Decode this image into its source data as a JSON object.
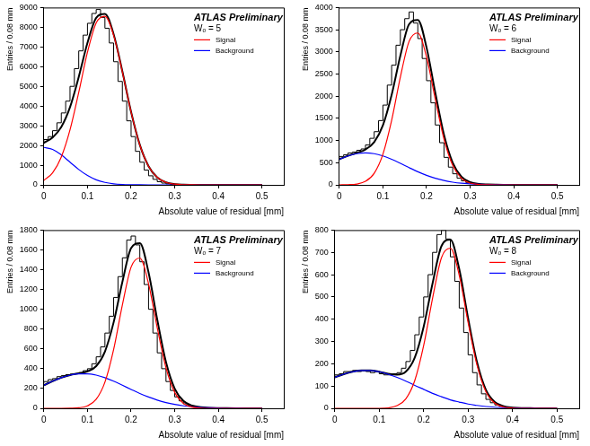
{
  "chart_data": [
    {
      "type": "histogram",
      "annotations": [
        "ATLAS Preliminary",
        "Wₒ = 5"
      ],
      "x_label": "Absolute value of residual [mm]",
      "y_label": "Entries / 0.08 mm",
      "color": "#000000",
      "bins": [
        0,
        0.01,
        0.02,
        0.03,
        0.04,
        0.05,
        0.06,
        0.07,
        0.08,
        0.09,
        0.1,
        0.11,
        0.12,
        0.13,
        0.14,
        0.15,
        0.16,
        0.17,
        0.18,
        0.19,
        0.2,
        0.21,
        0.22,
        0.23,
        0.24,
        0.25,
        0.26,
        0.27,
        0.28,
        0.29,
        0.3,
        0.31,
        0.32,
        0.33,
        0.34,
        0.35,
        0.36,
        0.37,
        0.38,
        0.39,
        0.4,
        0.41,
        0.42,
        0.43,
        0.44,
        0.45,
        0.46,
        0.47,
        0.48,
        0.49,
        0.5
      ],
      "counts": [
        2150,
        2300,
        2450,
        2750,
        3150,
        3650,
        4250,
        5000,
        5900,
        6800,
        7600,
        8200,
        8700,
        8900,
        8500,
        7950,
        7200,
        6250,
        5250,
        4250,
        3250,
        2450,
        1700,
        1150,
        750,
        460,
        280,
        160,
        90,
        50,
        28,
        14,
        7,
        4,
        2,
        1,
        0,
        0,
        0,
        0,
        0,
        0,
        0,
        0,
        0,
        0,
        0,
        0,
        0,
        0
      ],
      "x": [
        0,
        0.02,
        0.04,
        0.06,
        0.08,
        0.1,
        0.12,
        0.14,
        0.16,
        0.18,
        0.2,
        0.22,
        0.24,
        0.26,
        0.28,
        0.3,
        0.32,
        0.34,
        0.36,
        0.38,
        0.4,
        0.42,
        0.44,
        0.46,
        0.48,
        0.5
      ],
      "series": [
        {
          "name": "Signal",
          "type": "line",
          "color": "#ff0000",
          "values": [
            225,
            610,
            1415,
            2792,
            4696,
            6731,
            8221,
            8557,
            7590,
            5737,
            3694,
            2027,
            948,
            378,
            128,
            37,
            9,
            2,
            0,
            0,
            0,
            0,
            0,
            0,
            0,
            0
          ]
        },
        {
          "name": "Background",
          "type": "line",
          "color": "#0000ff",
          "values": [
            1900,
            1797,
            1522,
            1152,
            781,
            474,
            257,
            125,
            54,
            21,
            8,
            3,
            1,
            0,
            0,
            0,
            0,
            0,
            0,
            0,
            0,
            0,
            0,
            0,
            0,
            0
          ]
        },
        {
          "type": "line",
          "color": "#000000",
          "values": [
            2125,
            2407,
            2937,
            3944,
            5477,
            7205,
            8478,
            8682,
            7644,
            5758,
            3702,
            2030,
            949,
            378,
            128,
            37,
            9,
            2,
            0,
            0,
            0,
            0,
            0,
            0,
            0,
            0
          ]
        }
      ],
      "xlim": [
        0,
        0.55
      ],
      "xticks": [
        0,
        0.1,
        0.2,
        0.3,
        0.4,
        0.5
      ],
      "ylim": [
        0,
        9000
      ],
      "yticks": [
        0,
        1000,
        2000,
        3000,
        4000,
        5000,
        6000,
        7000,
        8000,
        9000
      ],
      "grid": false,
      "legend": "upper right"
    },
    {
      "type": "histogram",
      "annotations": [
        "ATLAS Preliminary",
        "Wₒ = 6"
      ],
      "x_label": "Absolute value of residual [mm]",
      "y_label": "Entries / 0.08 mm",
      "color": "#000000",
      "bins": [
        0,
        0.01,
        0.02,
        0.03,
        0.04,
        0.05,
        0.06,
        0.07,
        0.08,
        0.09,
        0.1,
        0.11,
        0.12,
        0.13,
        0.14,
        0.15,
        0.16,
        0.17,
        0.18,
        0.19,
        0.2,
        0.21,
        0.22,
        0.23,
        0.24,
        0.25,
        0.26,
        0.27,
        0.28,
        0.29,
        0.3,
        0.31,
        0.32,
        0.33,
        0.34,
        0.35,
        0.36,
        0.37,
        0.38,
        0.39,
        0.4,
        0.41,
        0.42,
        0.43,
        0.44,
        0.45,
        0.46,
        0.47,
        0.48,
        0.49,
        0.5
      ],
      "counts": [
        590,
        640,
        680,
        720,
        740,
        780,
        810,
        900,
        1050,
        1200,
        1450,
        1800,
        2250,
        2700,
        3150,
        3500,
        3750,
        3900,
        3650,
        3300,
        2850,
        2350,
        1850,
        1350,
        950,
        620,
        400,
        250,
        150,
        90,
        55,
        30,
        18,
        10,
        6,
        3,
        2,
        1,
        1,
        0,
        0,
        0,
        0,
        0,
        0,
        0,
        0,
        0,
        0,
        0
      ],
      "x": [
        0,
        0.02,
        0.04,
        0.06,
        0.08,
        0.1,
        0.12,
        0.14,
        0.16,
        0.18,
        0.2,
        0.22,
        0.24,
        0.26,
        0.28,
        0.3,
        0.32,
        0.34,
        0.36,
        0.38,
        0.4,
        0.42,
        0.44,
        0.46,
        0.48,
        0.5
      ],
      "series": [
        {
          "name": "Signal",
          "type": "line",
          "color": "#ff0000",
          "values": [
            0,
            4,
            19,
            79,
            262,
            692,
            1454,
            2431,
            3236,
            3426,
            2885,
            1934,
            1032,
            438,
            148,
            40,
            9,
            2,
            0,
            0,
            0,
            0,
            0,
            0,
            0,
            0
          ]
        },
        {
          "name": "Background",
          "type": "line",
          "color": "#0000ff",
          "values": [
            576,
            652,
            703,
            720,
            703,
            652,
            576,
            485,
            388,
            296,
            215,
            148,
            97,
            61,
            36,
            21,
            11,
            6,
            3,
            1,
            0,
            0,
            0,
            0,
            0,
            0
          ]
        },
        {
          "type": "line",
          "color": "#000000",
          "values": [
            576,
            656,
            722,
            799,
            965,
            1344,
            2030,
            2916,
            3624,
            3722,
            3100,
            2082,
            1129,
            499,
            184,
            61,
            20,
            8,
            3,
            1,
            0,
            0,
            0,
            0,
            0,
            0
          ]
        }
      ],
      "xlim": [
        0,
        0.55
      ],
      "xticks": [
        0,
        0.1,
        0.2,
        0.3,
        0.4,
        0.5
      ],
      "ylim": [
        0,
        4000
      ],
      "yticks": [
        0,
        500,
        1000,
        1500,
        2000,
        2500,
        3000,
        3500,
        4000
      ],
      "grid": false,
      "legend": "upper right"
    },
    {
      "type": "histogram",
      "annotations": [
        "ATLAS Preliminary",
        "Wₒ = 7"
      ],
      "x_label": "Absolute value of residual [mm]",
      "y_label": "Entries / 0.08 mm",
      "color": "#000000",
      "bins": [
        0,
        0.01,
        0.02,
        0.03,
        0.04,
        0.05,
        0.06,
        0.07,
        0.08,
        0.09,
        0.1,
        0.11,
        0.12,
        0.13,
        0.14,
        0.15,
        0.16,
        0.17,
        0.18,
        0.19,
        0.2,
        0.21,
        0.22,
        0.23,
        0.24,
        0.25,
        0.26,
        0.27,
        0.28,
        0.29,
        0.3,
        0.31,
        0.32,
        0.33,
        0.34,
        0.35,
        0.36,
        0.37,
        0.38,
        0.39,
        0.4,
        0.41,
        0.42,
        0.43,
        0.44,
        0.45,
        0.46,
        0.47,
        0.48,
        0.49,
        0.5
      ],
      "counts": [
        250,
        270,
        290,
        300,
        320,
        330,
        340,
        345,
        350,
        360,
        380,
        400,
        450,
        520,
        620,
        760,
        930,
        1120,
        1330,
        1520,
        1700,
        1740,
        1650,
        1480,
        1250,
        1000,
        760,
        560,
        400,
        270,
        180,
        115,
        75,
        45,
        30,
        18,
        12,
        8,
        6,
        4,
        3,
        2,
        2,
        1,
        1,
        0,
        0,
        0,
        0,
        0
      ],
      "x": [
        0,
        0.02,
        0.04,
        0.06,
        0.08,
        0.1,
        0.12,
        0.14,
        0.16,
        0.18,
        0.2,
        0.22,
        0.24,
        0.26,
        0.28,
        0.3,
        0.32,
        0.34,
        0.36,
        0.38,
        0.4,
        0.42,
        0.44,
        0.46,
        0.48,
        0.5
      ],
      "series": [
        {
          "name": "Signal",
          "type": "line",
          "color": "#ff0000",
          "values": [
            0,
            0,
            0,
            1,
            5,
            25,
            91,
            264,
            595,
            1043,
            1426,
            1518,
            1259,
            812,
            409,
            160,
            49,
            12,
            2,
            0,
            0,
            0,
            0,
            0,
            0,
            0
          ]
        },
        {
          "name": "Background",
          "type": "line",
          "color": "#0000ff",
          "values": [
            233,
            274,
            309,
            335,
            348,
            348,
            335,
            309,
            274,
            233,
            191,
            150,
            114,
            83,
            58,
            39,
            25,
            15,
            9,
            5,
            3,
            2,
            1,
            0,
            0,
            0
          ]
        },
        {
          "type": "line",
          "color": "#000000",
          "values": [
            233,
            274,
            309,
            336,
            353,
            373,
            426,
            573,
            869,
            1276,
            1617,
            1668,
            1373,
            895,
            467,
            199,
            74,
            27,
            11,
            5,
            3,
            2,
            1,
            0,
            0,
            0
          ]
        }
      ],
      "xlim": [
        0,
        0.55
      ],
      "xticks": [
        0,
        0.1,
        0.2,
        0.3,
        0.4,
        0.5
      ],
      "ylim": [
        0,
        1800
      ],
      "yticks": [
        0,
        200,
        400,
        600,
        800,
        1000,
        1200,
        1400,
        1600,
        1800
      ],
      "grid": false,
      "legend": "upper right"
    },
    {
      "type": "histogram",
      "annotations": [
        "ATLAS Preliminary",
        "Wₒ = 8"
      ],
      "x_label": "Absolute value of residual [mm]",
      "y_label": "Entries / 0.08 mm",
      "color": "#000000",
      "bins": [
        0,
        0.01,
        0.02,
        0.03,
        0.04,
        0.05,
        0.06,
        0.07,
        0.08,
        0.09,
        0.1,
        0.11,
        0.12,
        0.13,
        0.14,
        0.15,
        0.16,
        0.17,
        0.18,
        0.19,
        0.2,
        0.21,
        0.22,
        0.23,
        0.24,
        0.25,
        0.26,
        0.27,
        0.28,
        0.29,
        0.3,
        0.31,
        0.32,
        0.33,
        0.34,
        0.35,
        0.36,
        0.37,
        0.38,
        0.39,
        0.4,
        0.41,
        0.42,
        0.43,
        0.44,
        0.45,
        0.46,
        0.47,
        0.48,
        0.49,
        0.5
      ],
      "counts": [
        140,
        150,
        155,
        165,
        165,
        170,
        165,
        170,
        165,
        160,
        165,
        155,
        150,
        150,
        155,
        160,
        180,
        210,
        260,
        330,
        410,
        500,
        600,
        700,
        780,
        800,
        760,
        680,
        570,
        450,
        340,
        240,
        160,
        105,
        65,
        40,
        25,
        15,
        9,
        5,
        3,
        2,
        1,
        1,
        0,
        0,
        0,
        0,
        0,
        0
      ],
      "x": [
        0,
        0.02,
        0.04,
        0.06,
        0.08,
        0.1,
        0.12,
        0.14,
        0.16,
        0.18,
        0.2,
        0.22,
        0.24,
        0.26,
        0.28,
        0.3,
        0.32,
        0.34,
        0.36,
        0.38,
        0.4,
        0.42,
        0.44,
        0.46,
        0.48,
        0.5
      ],
      "series": [
        {
          "name": "Signal",
          "type": "line",
          "color": "#ff0000",
          "values": [
            0,
            0,
            0,
            0,
            0,
            0,
            2,
            12,
            43,
            125,
            282,
            494,
            676,
            719,
            597,
            385,
            194,
            75,
            23,
            6,
            1,
            0,
            0,
            0,
            0,
            0
          ]
        },
        {
          "name": "Background",
          "type": "line",
          "color": "#0000ff",
          "values": [
            139,
            153,
            164,
            170,
            170,
            164,
            153,
            139,
            122,
            103,
            85,
            67,
            52,
            38,
            28,
            19,
            13,
            8,
            5,
            3,
            2,
            1,
            1,
            0,
            0,
            0
          ]
        },
        {
          "type": "line",
          "color": "#000000",
          "values": [
            139,
            153,
            164,
            170,
            170,
            164,
            155,
            151,
            165,
            228,
            367,
            561,
            728,
            757,
            625,
            404,
            207,
            83,
            28,
            9,
            3,
            1,
            1,
            0,
            0,
            0
          ]
        }
      ],
      "xlim": [
        0,
        0.55
      ],
      "xticks": [
        0,
        0.1,
        0.2,
        0.3,
        0.4,
        0.5
      ],
      "ylim": [
        0,
        800
      ],
      "yticks": [
        0,
        100,
        200,
        300,
        400,
        500,
        600,
        700,
        800
      ],
      "grid": false,
      "legend": "upper right"
    }
  ]
}
